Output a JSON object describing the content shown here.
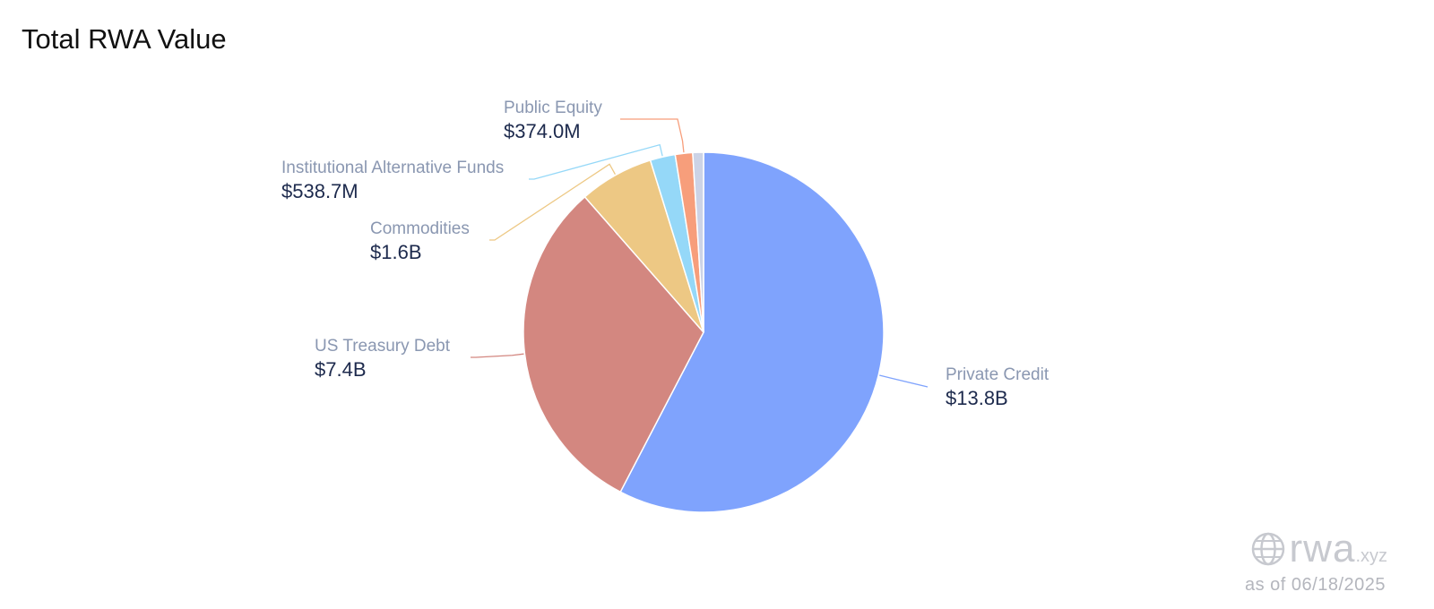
{
  "title": "Total RWA Value",
  "chart_data": {
    "type": "pie",
    "title": "Total RWA Value",
    "unit": "USD",
    "slices": [
      {
        "name": "Private Credit",
        "label": "$13.8B",
        "value": 13800000000,
        "color": "#7fa3fd"
      },
      {
        "name": "US Treasury Debt",
        "label": "$7.4B",
        "value": 7400000000,
        "color": "#d38780"
      },
      {
        "name": "Commodities",
        "label": "$1.6B",
        "value": 1600000000,
        "color": "#edc884"
      },
      {
        "name": "Institutional Alternative Funds",
        "label": "$538.7M",
        "value": 538700000,
        "color": "#95d8f8"
      },
      {
        "name": "Public Equity",
        "label": "$374.0M",
        "value": 374000000,
        "color": "#f79e7b"
      },
      {
        "name": "",
        "label": "",
        "value": 230000000,
        "color": "#ccd3e6"
      }
    ]
  },
  "brand": {
    "main": "rwa",
    "suffix": ".xyz",
    "icon": "globe-icon",
    "as_of": "as of 06/18/2025"
  }
}
